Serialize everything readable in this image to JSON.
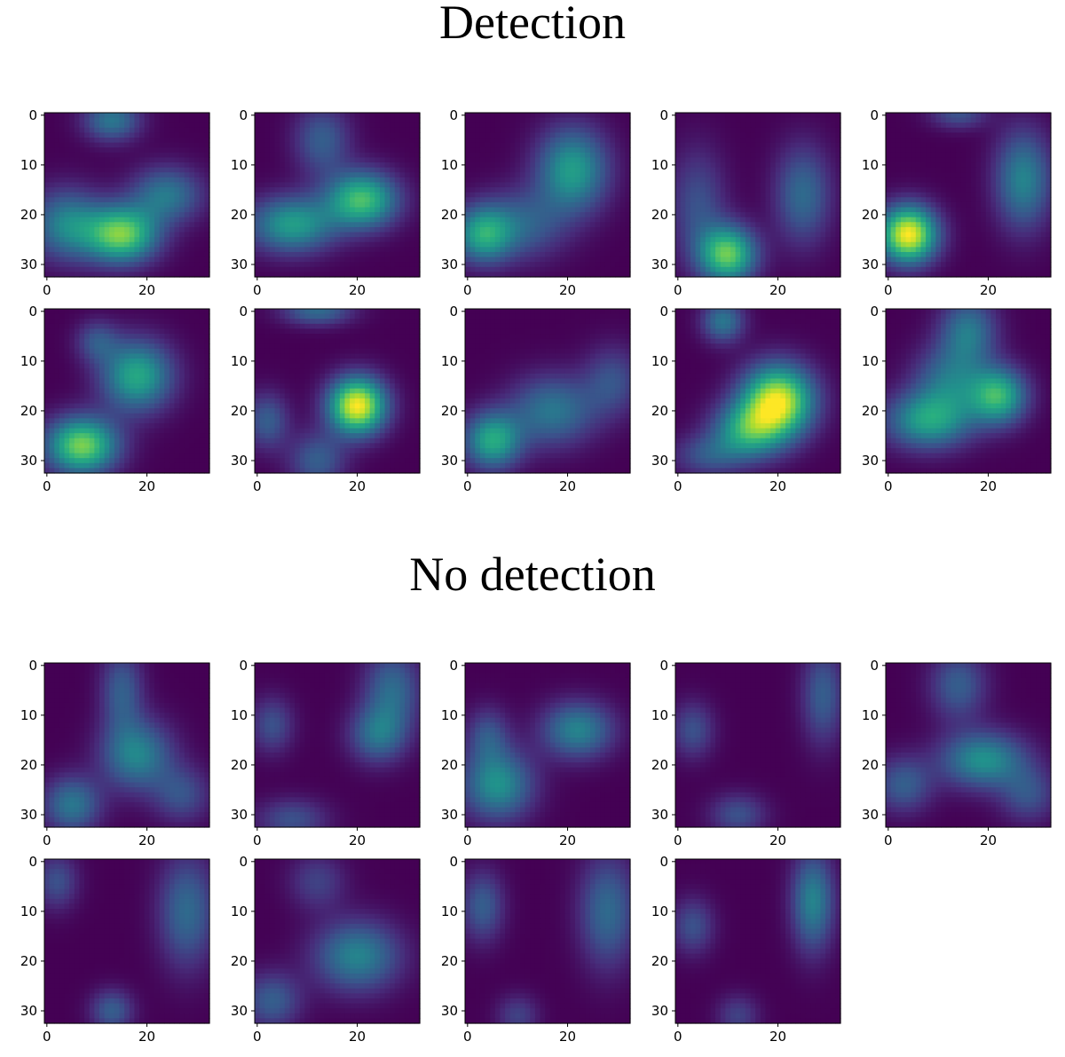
{
  "sections": {
    "detection": {
      "title": "Detection"
    },
    "no_detection": {
      "title": "No detection"
    }
  },
  "colormap": "viridis",
  "colors": {
    "low": "#440154",
    "mid": "#21918c",
    "high": "#fde725"
  },
  "chart_data": [
    {
      "type": "heatmap",
      "title": "Detection",
      "panel_grid": {
        "rows": 2,
        "cols": 5
      },
      "xlim": [
        0,
        32
      ],
      "ylim": [
        32,
        0
      ],
      "x_ticks": [
        0,
        20
      ],
      "y_ticks": [
        0,
        10,
        20,
        30
      ],
      "colormap": "viridis",
      "panels": [
        {
          "blobs": [
            {
              "x": 13,
              "y": 1,
              "sx": 4,
              "sy": 3,
              "a": 0.4
            },
            {
              "x": 15,
              "y": 24,
              "sx": 5,
              "sy": 4,
              "a": 0.78
            },
            {
              "x": 4,
              "y": 22,
              "sx": 5,
              "sy": 5,
              "a": 0.45
            },
            {
              "x": 24,
              "y": 16,
              "sx": 5,
              "sy": 4,
              "a": 0.4
            }
          ]
        },
        {
          "blobs": [
            {
              "x": 21,
              "y": 17,
              "sx": 5,
              "sy": 4,
              "a": 0.7
            },
            {
              "x": 7,
              "y": 22,
              "sx": 6,
              "sy": 4,
              "a": 0.55
            },
            {
              "x": 13,
              "y": 5,
              "sx": 4,
              "sy": 5,
              "a": 0.3
            }
          ]
        },
        {
          "blobs": [
            {
              "x": 21,
              "y": 11,
              "sx": 5,
              "sy": 6,
              "a": 0.55
            },
            {
              "x": 3,
              "y": 24,
              "sx": 4,
              "sy": 4,
              "a": 0.55
            },
            {
              "x": 11,
              "y": 22,
              "sx": 6,
              "sy": 5,
              "a": 0.3
            }
          ]
        },
        {
          "blobs": [
            {
              "x": 10,
              "y": 28,
              "sx": 4,
              "sy": 4,
              "a": 0.75
            },
            {
              "x": 25,
              "y": 16,
              "sx": 4,
              "sy": 7,
              "a": 0.35
            },
            {
              "x": 4,
              "y": 18,
              "sx": 4,
              "sy": 8,
              "a": 0.25
            }
          ]
        },
        {
          "blobs": [
            {
              "x": 4,
              "y": 24,
              "sx": 4,
              "sy": 4,
              "a": 1.0
            },
            {
              "x": 27,
              "y": 13,
              "sx": 4,
              "sy": 7,
              "a": 0.45
            },
            {
              "x": 14,
              "y": 0,
              "sx": 4,
              "sy": 2,
              "a": 0.25
            }
          ]
        },
        {
          "blobs": [
            {
              "x": 7,
              "y": 27,
              "sx": 5,
              "sy": 4,
              "a": 0.8
            },
            {
              "x": 18,
              "y": 13,
              "sx": 5,
              "sy": 5,
              "a": 0.6
            },
            {
              "x": 10,
              "y": 6,
              "sx": 3,
              "sy": 3,
              "a": 0.25
            }
          ]
        },
        {
          "blobs": [
            {
              "x": 20,
              "y": 19,
              "sx": 4,
              "sy": 4,
              "a": 1.0
            },
            {
              "x": 12,
              "y": 0,
              "sx": 5,
              "sy": 2,
              "a": 0.35
            },
            {
              "x": 12,
              "y": 30,
              "sx": 4,
              "sy": 4,
              "a": 0.3
            },
            {
              "x": 2,
              "y": 22,
              "sx": 3,
              "sy": 4,
              "a": 0.3
            }
          ]
        },
        {
          "blobs": [
            {
              "x": 5,
              "y": 26,
              "sx": 4,
              "sy": 4,
              "a": 0.6
            },
            {
              "x": 17,
              "y": 20,
              "sx": 6,
              "sy": 5,
              "a": 0.4
            },
            {
              "x": 29,
              "y": 14,
              "sx": 4,
              "sy": 5,
              "a": 0.25
            }
          ]
        },
        {
          "blobs": [
            {
              "x": 20,
              "y": 18,
              "sx": 5,
              "sy": 5,
              "a": 0.95
            },
            {
              "x": 14,
              "y": 24,
              "sx": 5,
              "sy": 4,
              "a": 0.55
            },
            {
              "x": 9,
              "y": 2,
              "sx": 3,
              "sy": 3,
              "a": 0.4
            },
            {
              "x": 6,
              "y": 29,
              "sx": 5,
              "sy": 3,
              "a": 0.25
            }
          ]
        },
        {
          "blobs": [
            {
              "x": 22,
              "y": 17,
              "sx": 4,
              "sy": 4,
              "a": 0.65
            },
            {
              "x": 8,
              "y": 22,
              "sx": 6,
              "sy": 4,
              "a": 0.55
            },
            {
              "x": 16,
              "y": 4,
              "sx": 4,
              "sy": 5,
              "a": 0.4
            },
            {
              "x": 12,
              "y": 14,
              "sx": 5,
              "sy": 5,
              "a": 0.35
            }
          ]
        }
      ]
    },
    {
      "type": "heatmap",
      "title": "No detection",
      "panel_grid": {
        "rows": 2,
        "cols": 5
      },
      "xlim": [
        0,
        32
      ],
      "ylim": [
        32,
        0
      ],
      "x_ticks": [
        0,
        20
      ],
      "y_ticks": [
        0,
        10,
        20,
        30
      ],
      "colormap": "viridis",
      "panels": [
        {
          "blobs": [
            {
              "x": 18,
              "y": 18,
              "sx": 5,
              "sy": 5,
              "a": 0.45
            },
            {
              "x": 5,
              "y": 28,
              "sx": 4,
              "sy": 4,
              "a": 0.4
            },
            {
              "x": 15,
              "y": 5,
              "sx": 3,
              "sy": 6,
              "a": 0.3
            },
            {
              "x": 27,
              "y": 26,
              "sx": 4,
              "sy": 4,
              "a": 0.25
            }
          ]
        },
        {
          "blobs": [
            {
              "x": 27,
              "y": 5,
              "sx": 4,
              "sy": 6,
              "a": 0.35
            },
            {
              "x": 24,
              "y": 14,
              "sx": 4,
              "sy": 4,
              "a": 0.35
            },
            {
              "x": 3,
              "y": 12,
              "sx": 3,
              "sy": 4,
              "a": 0.25
            },
            {
              "x": 7,
              "y": 31,
              "sx": 5,
              "sy": 3,
              "a": 0.25
            }
          ]
        },
        {
          "blobs": [
            {
              "x": 6,
              "y": 24,
              "sx": 5,
              "sy": 5,
              "a": 0.5
            },
            {
              "x": 22,
              "y": 13,
              "sx": 5,
              "sy": 4,
              "a": 0.45
            },
            {
              "x": 4,
              "y": 14,
              "sx": 3,
              "sy": 4,
              "a": 0.25
            }
          ]
        },
        {
          "blobs": [
            {
              "x": 29,
              "y": 6,
              "sx": 3,
              "sy": 7,
              "a": 0.3
            },
            {
              "x": 3,
              "y": 13,
              "sx": 3,
              "sy": 4,
              "a": 0.25
            },
            {
              "x": 12,
              "y": 30,
              "sx": 4,
              "sy": 3,
              "a": 0.25
            }
          ]
        },
        {
          "blobs": [
            {
              "x": 19,
              "y": 19,
              "sx": 6,
              "sy": 4,
              "a": 0.5
            },
            {
              "x": 14,
              "y": 4,
              "sx": 4,
              "sy": 5,
              "a": 0.3
            },
            {
              "x": 3,
              "y": 24,
              "sx": 4,
              "sy": 4,
              "a": 0.3
            },
            {
              "x": 28,
              "y": 26,
              "sx": 4,
              "sy": 4,
              "a": 0.25
            }
          ]
        },
        {
          "blobs": [
            {
              "x": 28,
              "y": 10,
              "sx": 4,
              "sy": 8,
              "a": 0.35
            },
            {
              "x": 13,
              "y": 30,
              "sx": 3,
              "sy": 3,
              "a": 0.3
            },
            {
              "x": 2,
              "y": 4,
              "sx": 3,
              "sy": 4,
              "a": 0.25
            }
          ]
        },
        {
          "blobs": [
            {
              "x": 20,
              "y": 19,
              "sx": 6,
              "sy": 5,
              "a": 0.45
            },
            {
              "x": 3,
              "y": 28,
              "sx": 4,
              "sy": 4,
              "a": 0.3
            },
            {
              "x": 12,
              "y": 4,
              "sx": 4,
              "sy": 4,
              "a": 0.2
            }
          ]
        },
        {
          "blobs": [
            {
              "x": 28,
              "y": 10,
              "sx": 4,
              "sy": 8,
              "a": 0.35
            },
            {
              "x": 3,
              "y": 9,
              "sx": 3,
              "sy": 5,
              "a": 0.3
            },
            {
              "x": 10,
              "y": 31,
              "sx": 3,
              "sy": 3,
              "a": 0.2
            }
          ]
        },
        {
          "blobs": [
            {
              "x": 27,
              "y": 8,
              "sx": 3,
              "sy": 7,
              "a": 0.45
            },
            {
              "x": 3,
              "y": 13,
              "sx": 3,
              "sy": 4,
              "a": 0.25
            },
            {
              "x": 12,
              "y": 31,
              "sx": 3,
              "sy": 3,
              "a": 0.2
            }
          ]
        }
      ]
    }
  ]
}
